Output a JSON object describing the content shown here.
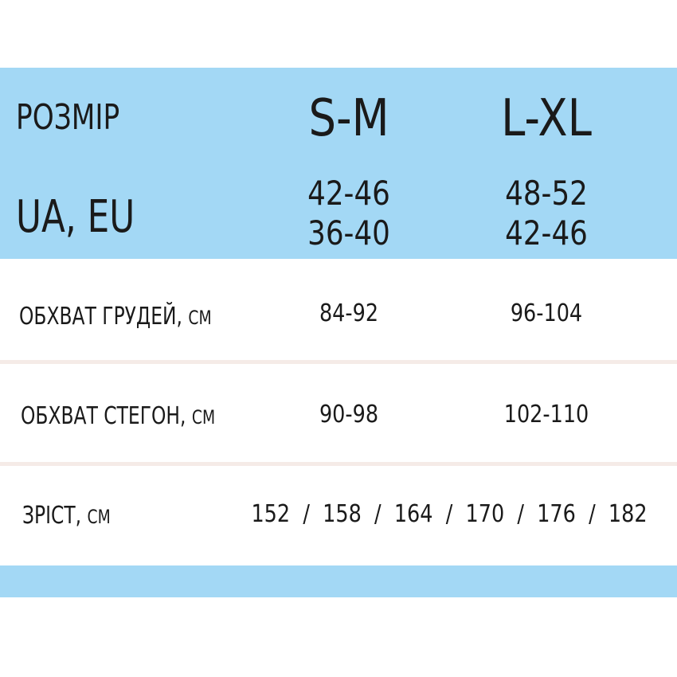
{
  "header": {
    "size_label": "РОЗМІР",
    "region_label": "UA, EU",
    "columns": [
      {
        "size": "S-M",
        "ua": "42-46",
        "eu": "36-40"
      },
      {
        "size": "L-XL",
        "ua": "48-52",
        "eu": "42-46"
      }
    ]
  },
  "rows": [
    {
      "label": "ОБХВАТ ГРУДЕЙ,",
      "unit": "СМ",
      "values": [
        "84-92",
        "96-104"
      ]
    },
    {
      "label": "ОБХВАТ СТЕГОН,",
      "unit": "СМ",
      "values": [
        "90-98",
        "102-110"
      ]
    },
    {
      "label": "ЗРІСТ,",
      "unit": "СМ",
      "value": "152  /  158  /  164  /  170  /  176  /  182"
    }
  ],
  "colors": {
    "band": "#a3d8f5",
    "divider": "#f5ebe7",
    "text": "#1a1a1a"
  }
}
